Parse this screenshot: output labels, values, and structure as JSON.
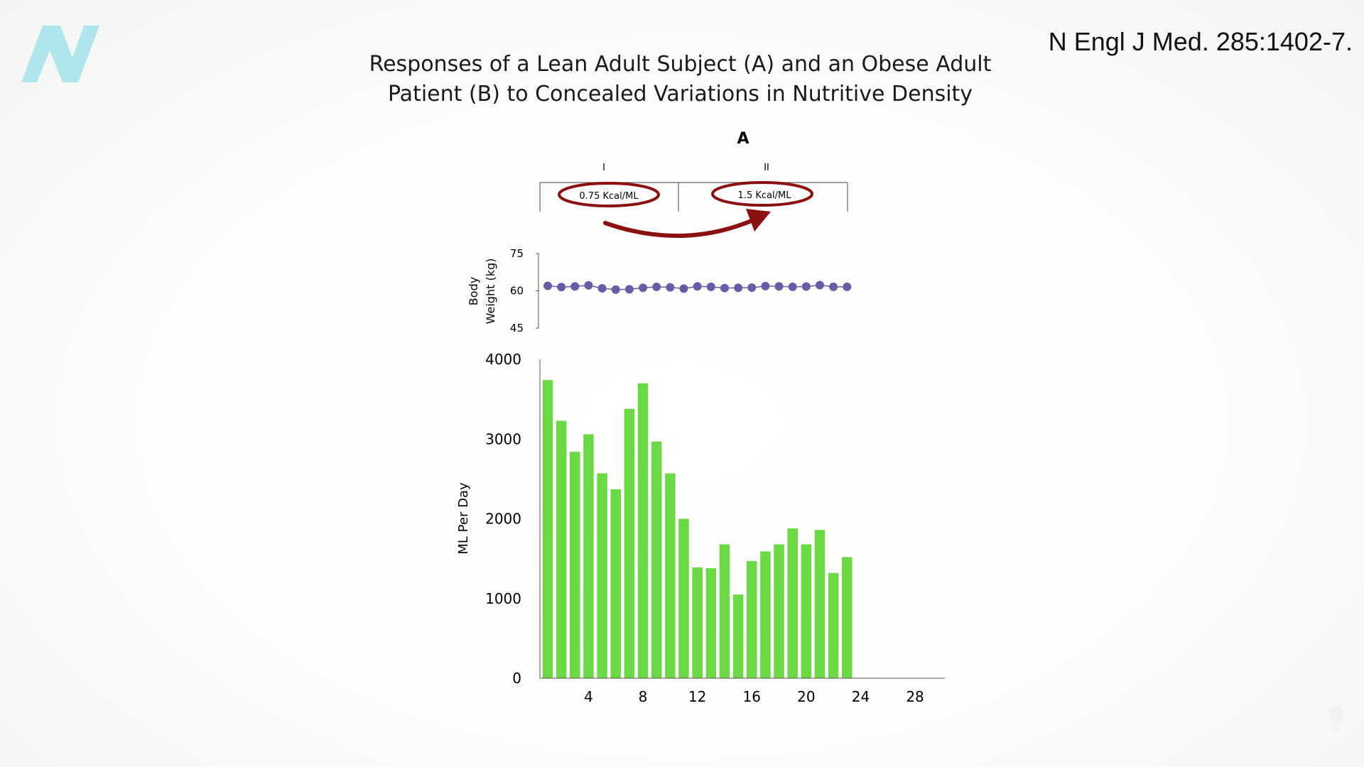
{
  "citation": "N Engl J Med. 285:1402-7.",
  "title_lines": [
    "Responses of a Lean Adult Subject (A) and an Obese Adult",
    "Patient (B) to Concealed Variations in Nutritive Density"
  ],
  "colors": {
    "bar": "#6ad944",
    "weight_marker": "#6a5ba6",
    "annotation": "#8b1010",
    "logo": "#a8e3ea"
  },
  "icons": {
    "logo": "n-logo-icon",
    "arrow": "curved-arrow-icon"
  },
  "chart_data": {
    "panel_label": "A",
    "phases": [
      {
        "label": "I",
        "annotation": "0.75 Kcal/ML"
      },
      {
        "label": "II",
        "annotation": "1.5 Kcal/ML"
      }
    ],
    "body_weight": {
      "type": "scatter",
      "ylabel_lines": [
        "Body",
        "Weight (kg)"
      ],
      "ylim": [
        45,
        75
      ],
      "yticks": [
        75,
        60,
        45
      ],
      "days": [
        1,
        2,
        3,
        4,
        5,
        6,
        7,
        8,
        9,
        10,
        11,
        12,
        13,
        14,
        15,
        16,
        17,
        18,
        19,
        20,
        21,
        22,
        23
      ],
      "values": [
        62,
        61.5,
        61.8,
        62.2,
        61,
        60.5,
        60.6,
        61.2,
        61.6,
        61.4,
        60.9,
        61.8,
        61.6,
        61.1,
        61.2,
        61.3,
        61.9,
        61.8,
        61.6,
        61.7,
        62.3,
        61.6,
        61.6
      ]
    },
    "intake": {
      "type": "bar",
      "ylabel": "ML Per Day",
      "ylim": [
        0,
        4000
      ],
      "yticks": [
        4000,
        3000,
        2000,
        1000,
        0
      ],
      "xticks": [
        4,
        8,
        12,
        16,
        20,
        24,
        28
      ],
      "days": [
        1,
        2,
        3,
        4,
        5,
        6,
        7,
        8,
        9,
        10,
        11,
        12,
        13,
        14,
        15,
        16,
        17,
        18,
        19,
        20,
        21,
        22,
        23
      ],
      "values": [
        3740,
        3230,
        2840,
        3060,
        2570,
        2370,
        3380,
        3700,
        2970,
        2570,
        2000,
        1390,
        1380,
        1680,
        1050,
        1470,
        1590,
        1680,
        1880,
        1680,
        1860,
        1320,
        1520
      ]
    }
  }
}
